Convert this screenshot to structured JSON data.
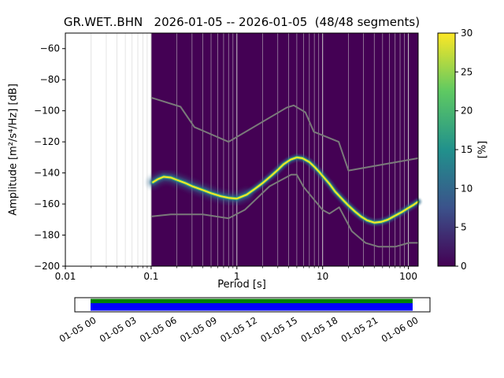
{
  "chart_data": {
    "type": "heatmap",
    "title": "GR.WET..BHN   2026-01-05 -- 2026-01-05  (48/48 segments)",
    "station": "GR.WET..BHN",
    "date_range": "2026-01-05 -- 2026-01-05",
    "segments": "48/48 segments",
    "xlabel": "Period [s]",
    "ylabel": "Amplitude [m²/s⁴/Hz] [dB]",
    "xscale": "log",
    "xlim": [
      0.01,
      130
    ],
    "ylim": [
      -200,
      -50
    ],
    "x_ticks": [
      0.01,
      0.1,
      1,
      10,
      100
    ],
    "y_ticks": [
      -200,
      -180,
      -160,
      -140,
      -120,
      -100,
      -80,
      -60
    ],
    "grid": {
      "vertical": true,
      "horizontal": false,
      "color": "#cccccc"
    },
    "histogram": {
      "period_min": 0.1,
      "period_max": 130,
      "background_color": "#440154",
      "colormap": "viridis"
    },
    "colorbar": {
      "label": "[%]",
      "min": 0,
      "max": 30,
      "ticks": [
        0,
        5,
        10,
        15,
        20,
        25,
        30
      ],
      "gradient": [
        "#440154",
        "#3b528b",
        "#21918c",
        "#5ec962",
        "#fde725"
      ]
    },
    "psd_curve_style": {
      "core": "#fde725",
      "mid": "#35b779",
      "halo": "#2d708e",
      "haze": "#31688e"
    },
    "psd_mode_curve": [
      [
        0.105,
        -146
      ],
      [
        0.12,
        -144
      ],
      [
        0.14,
        -142.5
      ],
      [
        0.17,
        -143
      ],
      [
        0.2,
        -144.5
      ],
      [
        0.25,
        -146.5
      ],
      [
        0.3,
        -148.5
      ],
      [
        0.4,
        -151
      ],
      [
        0.5,
        -153
      ],
      [
        0.65,
        -155
      ],
      [
        0.8,
        -156
      ],
      [
        1.0,
        -156.5
      ],
      [
        1.3,
        -154
      ],
      [
        1.6,
        -150.5
      ],
      [
        2.0,
        -146.5
      ],
      [
        2.5,
        -142
      ],
      [
        3.0,
        -138
      ],
      [
        3.5,
        -134.5
      ],
      [
        4.2,
        -131.5
      ],
      [
        5.0,
        -130
      ],
      [
        5.8,
        -130.5
      ],
      [
        7.0,
        -133
      ],
      [
        8.0,
        -136
      ],
      [
        9.0,
        -139
      ],
      [
        10,
        -142
      ],
      [
        12,
        -147
      ],
      [
        14,
        -152
      ],
      [
        17,
        -157
      ],
      [
        20,
        -161
      ],
      [
        24,
        -165
      ],
      [
        28,
        -168
      ],
      [
        33,
        -170.5
      ],
      [
        40,
        -172
      ],
      [
        48,
        -171.5
      ],
      [
        58,
        -170
      ],
      [
        70,
        -167.5
      ],
      [
        85,
        -165
      ],
      [
        100,
        -162.5
      ],
      [
        115,
        -160.5
      ],
      [
        130,
        -158.5
      ]
    ],
    "noise_models": {
      "color": "#7a7a7a",
      "nhnm": [
        [
          0.1,
          -91.5
        ],
        [
          0.22,
          -97.4
        ],
        [
          0.32,
          -110.5
        ],
        [
          0.8,
          -120
        ],
        [
          3.8,
          -98
        ],
        [
          4.6,
          -96.5
        ],
        [
          6.3,
          -101
        ],
        [
          7.9,
          -113.5
        ],
        [
          15.4,
          -120
        ],
        [
          20,
          -138.5
        ],
        [
          130,
          -130.5
        ]
      ],
      "nlnm": [
        [
          0.1,
          -168
        ],
        [
          0.17,
          -166.7
        ],
        [
          0.4,
          -166.7
        ],
        [
          0.8,
          -169.2
        ],
        [
          1.24,
          -163.7
        ],
        [
          2.4,
          -148.6
        ],
        [
          4.3,
          -141.1
        ],
        [
          5,
          -141.1
        ],
        [
          6,
          -149
        ],
        [
          10,
          -163.8
        ],
        [
          12,
          -166.2
        ],
        [
          15.6,
          -162.1
        ],
        [
          21.9,
          -177.5
        ],
        [
          31.6,
          -185
        ],
        [
          45,
          -187.5
        ],
        [
          70,
          -187.5
        ],
        [
          101,
          -185
        ],
        [
          130,
          -185
        ]
      ]
    },
    "timeline": {
      "coverage_color_top": "#008000",
      "coverage_color_bottom": "#0000ff",
      "tick_labels": [
        "01-05 00",
        "01-05 03",
        "01-05 06",
        "01-05 09",
        "01-05 12",
        "01-05 15",
        "01-05 18",
        "01-05 21",
        "01-06 00"
      ]
    }
  }
}
